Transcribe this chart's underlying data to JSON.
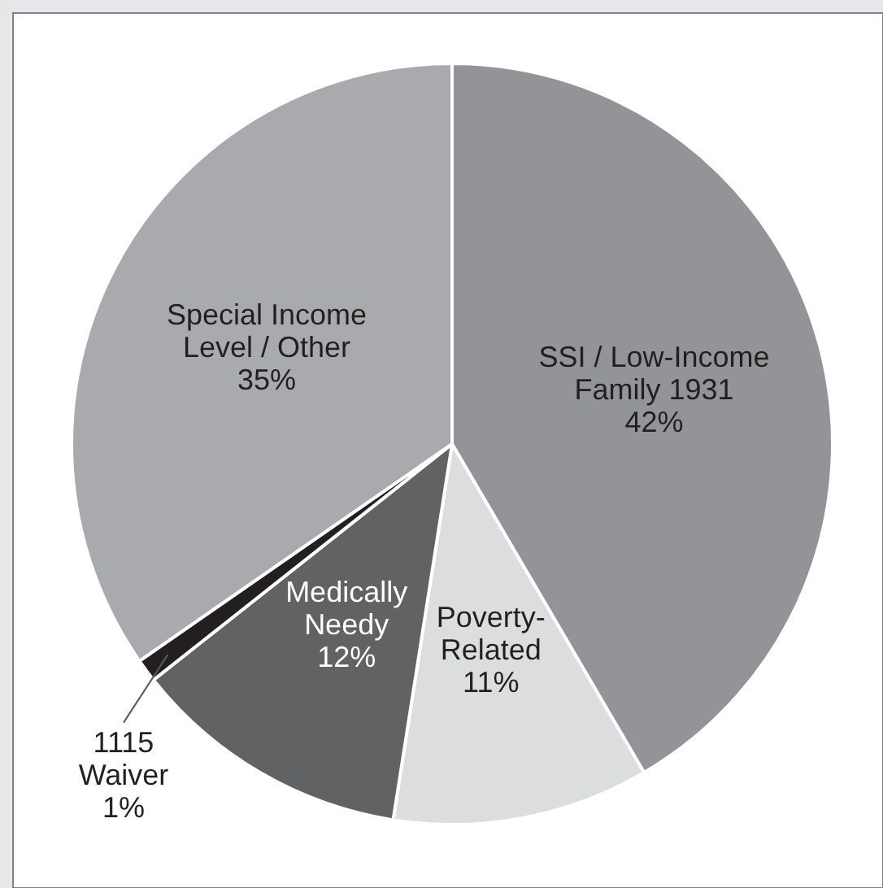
{
  "chart_data": {
    "type": "pie",
    "categories": [
      "SSI / Low-Income\nFamily 1931",
      "Poverty-\nRelated",
      "Medically\nNeedy",
      "1115\nWaiver",
      "Special Income\nLevel / Other"
    ],
    "values": [
      42,
      11,
      12,
      1,
      35
    ],
    "value_labels": [
      "42%",
      "11%",
      "12%",
      "1%",
      "35%"
    ],
    "colors": [
      "#939497",
      "#dcdddf",
      "#616264",
      "#231f20",
      "#a9aaad"
    ]
  }
}
